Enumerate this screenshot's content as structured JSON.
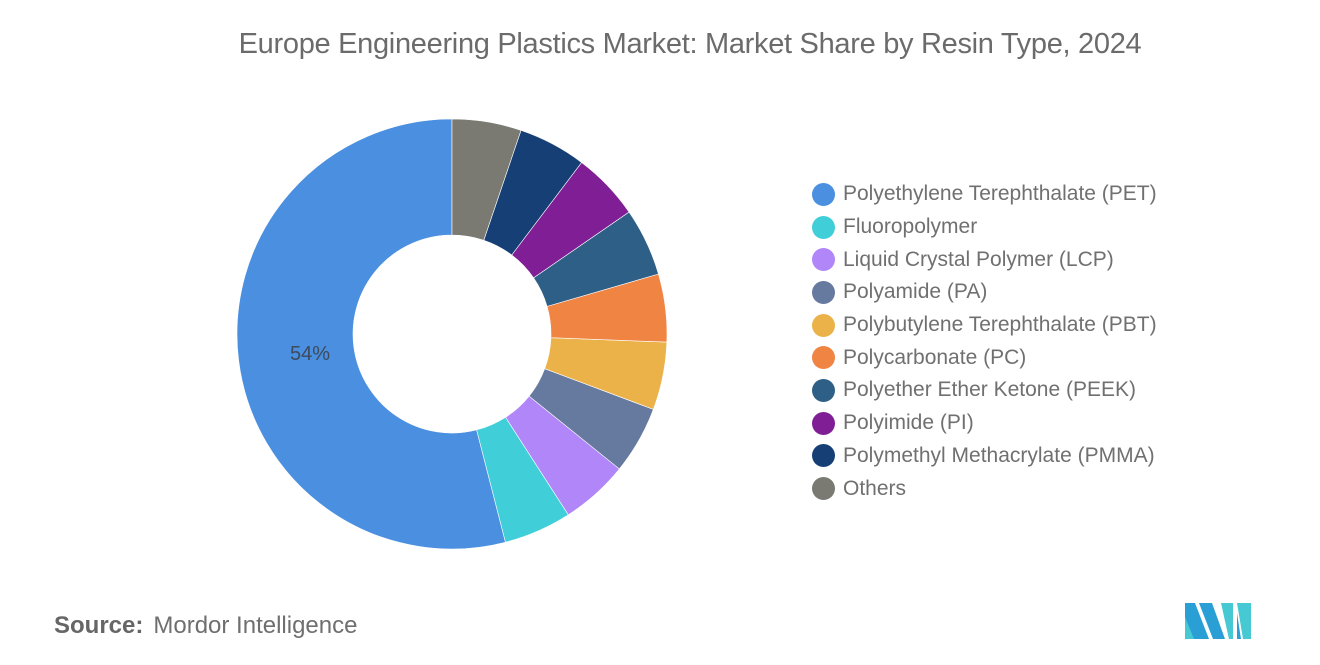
{
  "title": "Europe Engineering Plastics Market: Market Share by Resin Type, 2024",
  "source": {
    "label": "Source:",
    "value": "Mordor Intelligence"
  },
  "logo": {
    "icon": "mordor-intelligence-logo-icon"
  },
  "chart_data": {
    "type": "pie",
    "subtype": "donut",
    "title": "Europe Engineering Plastics Market: Market Share by Resin Type, 2024",
    "start_angle": "12 o'clock",
    "direction": "counter-clockwise",
    "legend_position": "right",
    "categories": [
      "Polyethylene Terephthalate (PET)",
      "Fluoropolymer",
      "Liquid Crystal Polymer (LCP)",
      "Polyamide (PA)",
      "Polybutylene Terephthalate (PBT)",
      "Polycarbonate (PC)",
      "Polyether Ether Ketone (PEEK)",
      "Polyimide (PI)",
      "Polymethyl Methacrylate (PMMA)",
      "Others"
    ],
    "values": [
      54,
      5.1,
      5.1,
      5.1,
      5.1,
      5.1,
      5.1,
      5.1,
      5.1,
      5.2
    ],
    "colors": [
      "#4a8fe0",
      "#40cfd9",
      "#b086f8",
      "#66799e",
      "#ebb24a",
      "#f08442",
      "#2e5f87",
      "#801f95",
      "#163f76",
      "#7a7a73"
    ],
    "data_labels": [
      {
        "category": "Polyethylene Terephthalate (PET)",
        "text": "54%"
      }
    ],
    "units": "%"
  },
  "legend": {
    "items": [
      {
        "label": "Polyethylene Terephthalate (PET)",
        "color": "#4a8fe0"
      },
      {
        "label": "Fluoropolymer",
        "color": "#40cfd9"
      },
      {
        "label": "Liquid Crystal Polymer (LCP)",
        "color": "#b086f8"
      },
      {
        "label": "Polyamide (PA)",
        "color": "#66799e"
      },
      {
        "label": "Polybutylene Terephthalate (PBT)",
        "color": "#ebb24a"
      },
      {
        "label": "Polycarbonate (PC)",
        "color": "#f08442"
      },
      {
        "label": "Polyether Ether Ketone (PEEK)",
        "color": "#2e5f87"
      },
      {
        "label": "Polyimide (PI)",
        "color": "#801f95"
      },
      {
        "label": "Polymethyl Methacrylate (PMMA)",
        "color": "#163f76"
      },
      {
        "label": "Others",
        "color": "#7a7a73"
      }
    ]
  }
}
